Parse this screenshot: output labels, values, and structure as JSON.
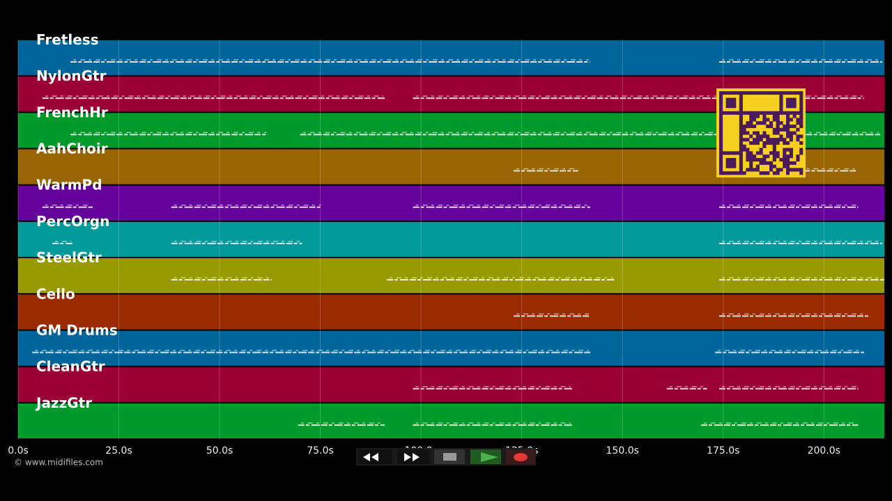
{
  "tracks": [
    {
      "name": "Fretless",
      "color": "#00659a",
      "spans": [
        [
          13,
          142
        ],
        [
          174,
          214.5
        ]
      ]
    },
    {
      "name": "NylonGtr",
      "color": "#9a0033",
      "spans": [
        [
          6,
          91
        ],
        [
          98,
          210
        ]
      ]
    },
    {
      "name": "FrenchHr",
      "color": "#009a2a",
      "spans": [
        [
          13,
          62
        ],
        [
          70,
          214
        ]
      ]
    },
    {
      "name": "AahChoir",
      "color": "#986500",
      "spans": [
        [
          123,
          139
        ],
        [
          195,
          208
        ]
      ]
    },
    {
      "name": "WarmPd",
      "color": "#65009a",
      "spans": [
        [
          6,
          18.5
        ],
        [
          38,
          75.5
        ],
        [
          98,
          142
        ],
        [
          174,
          208.5
        ]
      ]
    },
    {
      "name": "PercOrgn",
      "color": "#009a9a",
      "spans": [
        [
          8.5,
          13.5
        ],
        [
          38,
          70.5
        ],
        [
          174,
          214.5
        ]
      ]
    },
    {
      "name": "SteelGtr",
      "color": "#989a00",
      "spans": [
        [
          38,
          63
        ],
        [
          91.5,
          148
        ],
        [
          174,
          215
        ]
      ]
    },
    {
      "name": "Cello",
      "color": "#9a2a00",
      "spans": [
        [
          123,
          142
        ],
        [
          174,
          211
        ]
      ]
    },
    {
      "name": "GM Drums",
      "color": "#00659a",
      "spans": [
        [
          3.5,
          142
        ],
        [
          173,
          210
        ]
      ]
    },
    {
      "name": "CleanGtr",
      "color": "#9a0033",
      "spans": [
        [
          98,
          137.5
        ],
        [
          161,
          171
        ],
        [
          174,
          208.5
        ]
      ]
    },
    {
      "name": "JazzGtr",
      "color": "#009a2a",
      "spans": [
        [
          69.5,
          91
        ],
        [
          98,
          137.5
        ],
        [
          169.5,
          208.5
        ]
      ]
    }
  ],
  "time_axis": {
    "xlim": [
      0,
      215
    ],
    "ticks": [
      {
        "value": 0,
        "label": "0.0s"
      },
      {
        "value": 25,
        "label": "25.0s"
      },
      {
        "value": 50,
        "label": "50.0s"
      },
      {
        "value": 75,
        "label": "75.0s"
      },
      {
        "value": 100,
        "label": "100.0s"
      },
      {
        "value": 125,
        "label": "125.0s"
      },
      {
        "value": 150,
        "label": "150.0s"
      },
      {
        "value": 175,
        "label": "175.0s"
      },
      {
        "value": 200,
        "label": "200.0s"
      }
    ]
  },
  "footer": {
    "copyright": "© www.midifiles.com"
  }
}
